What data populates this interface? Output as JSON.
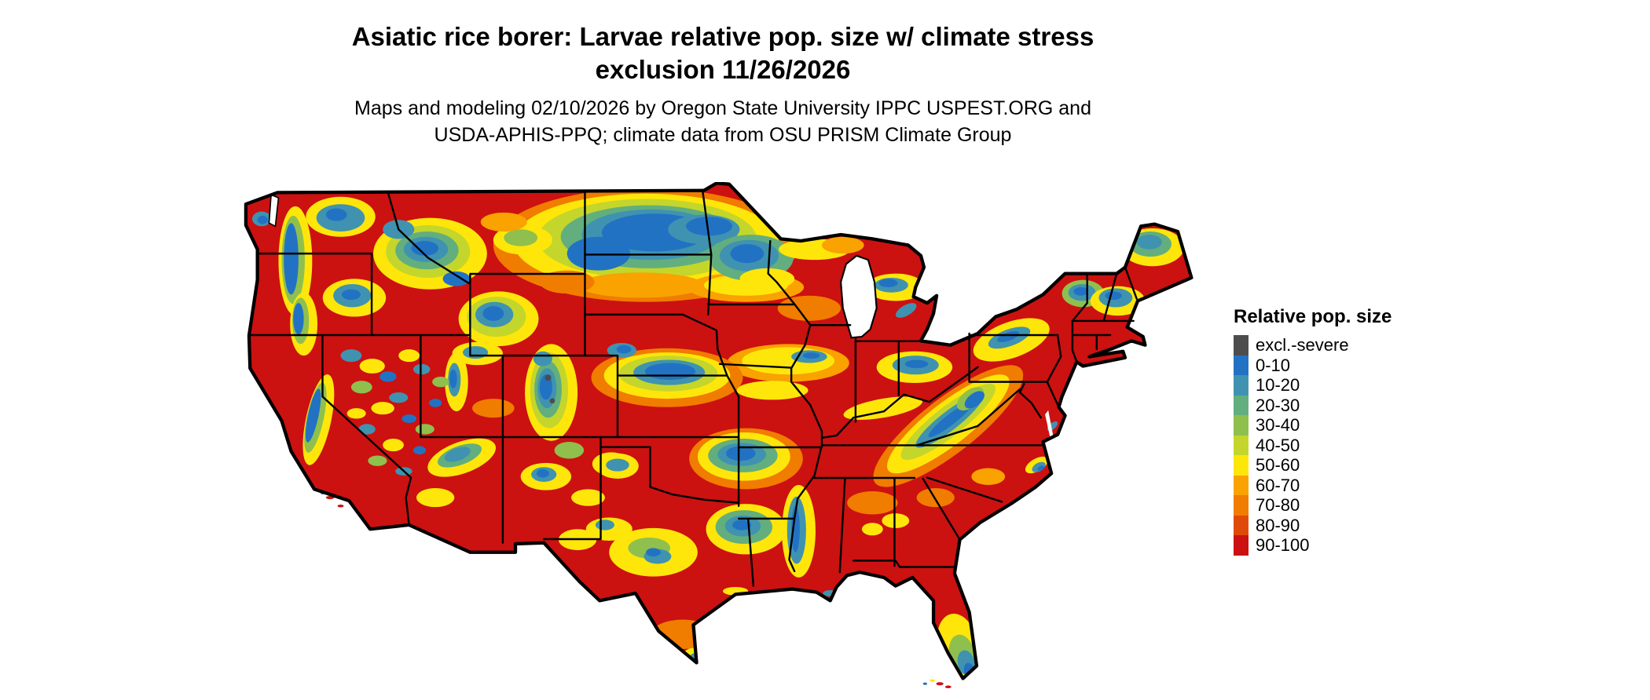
{
  "title": {
    "line1": "Asiatic rice borer: Larvae relative pop. size w/ climate stress",
    "line2": "exclusion 11/26/2026"
  },
  "subtitle": {
    "line1": "Maps and modeling 02/10/2026 by Oregon State University IPPC USPEST.ORG and",
    "line2": "USDA-APHIS-PPQ; climate data from OSU PRISM Climate Group"
  },
  "legend": {
    "title": "Relative pop. size",
    "items": [
      {
        "label": "excl.-severe",
        "color": "#4D4D4D"
      },
      {
        "label": "0-10",
        "color": "#2272C3"
      },
      {
        "label": "10-20",
        "color": "#3F93B0"
      },
      {
        "label": "20-30",
        "color": "#62AE7E"
      },
      {
        "label": "30-40",
        "color": "#8FC04D"
      },
      {
        "label": "40-50",
        "color": "#C4D62B"
      },
      {
        "label": "50-60",
        "color": "#FFE60A"
      },
      {
        "label": "60-70",
        "color": "#F9A200"
      },
      {
        "label": "70-80",
        "color": "#F07C00"
      },
      {
        "label": "80-90",
        "color": "#E04A08"
      },
      {
        "label": "90-100",
        "color": "#CC1111"
      }
    ]
  }
}
